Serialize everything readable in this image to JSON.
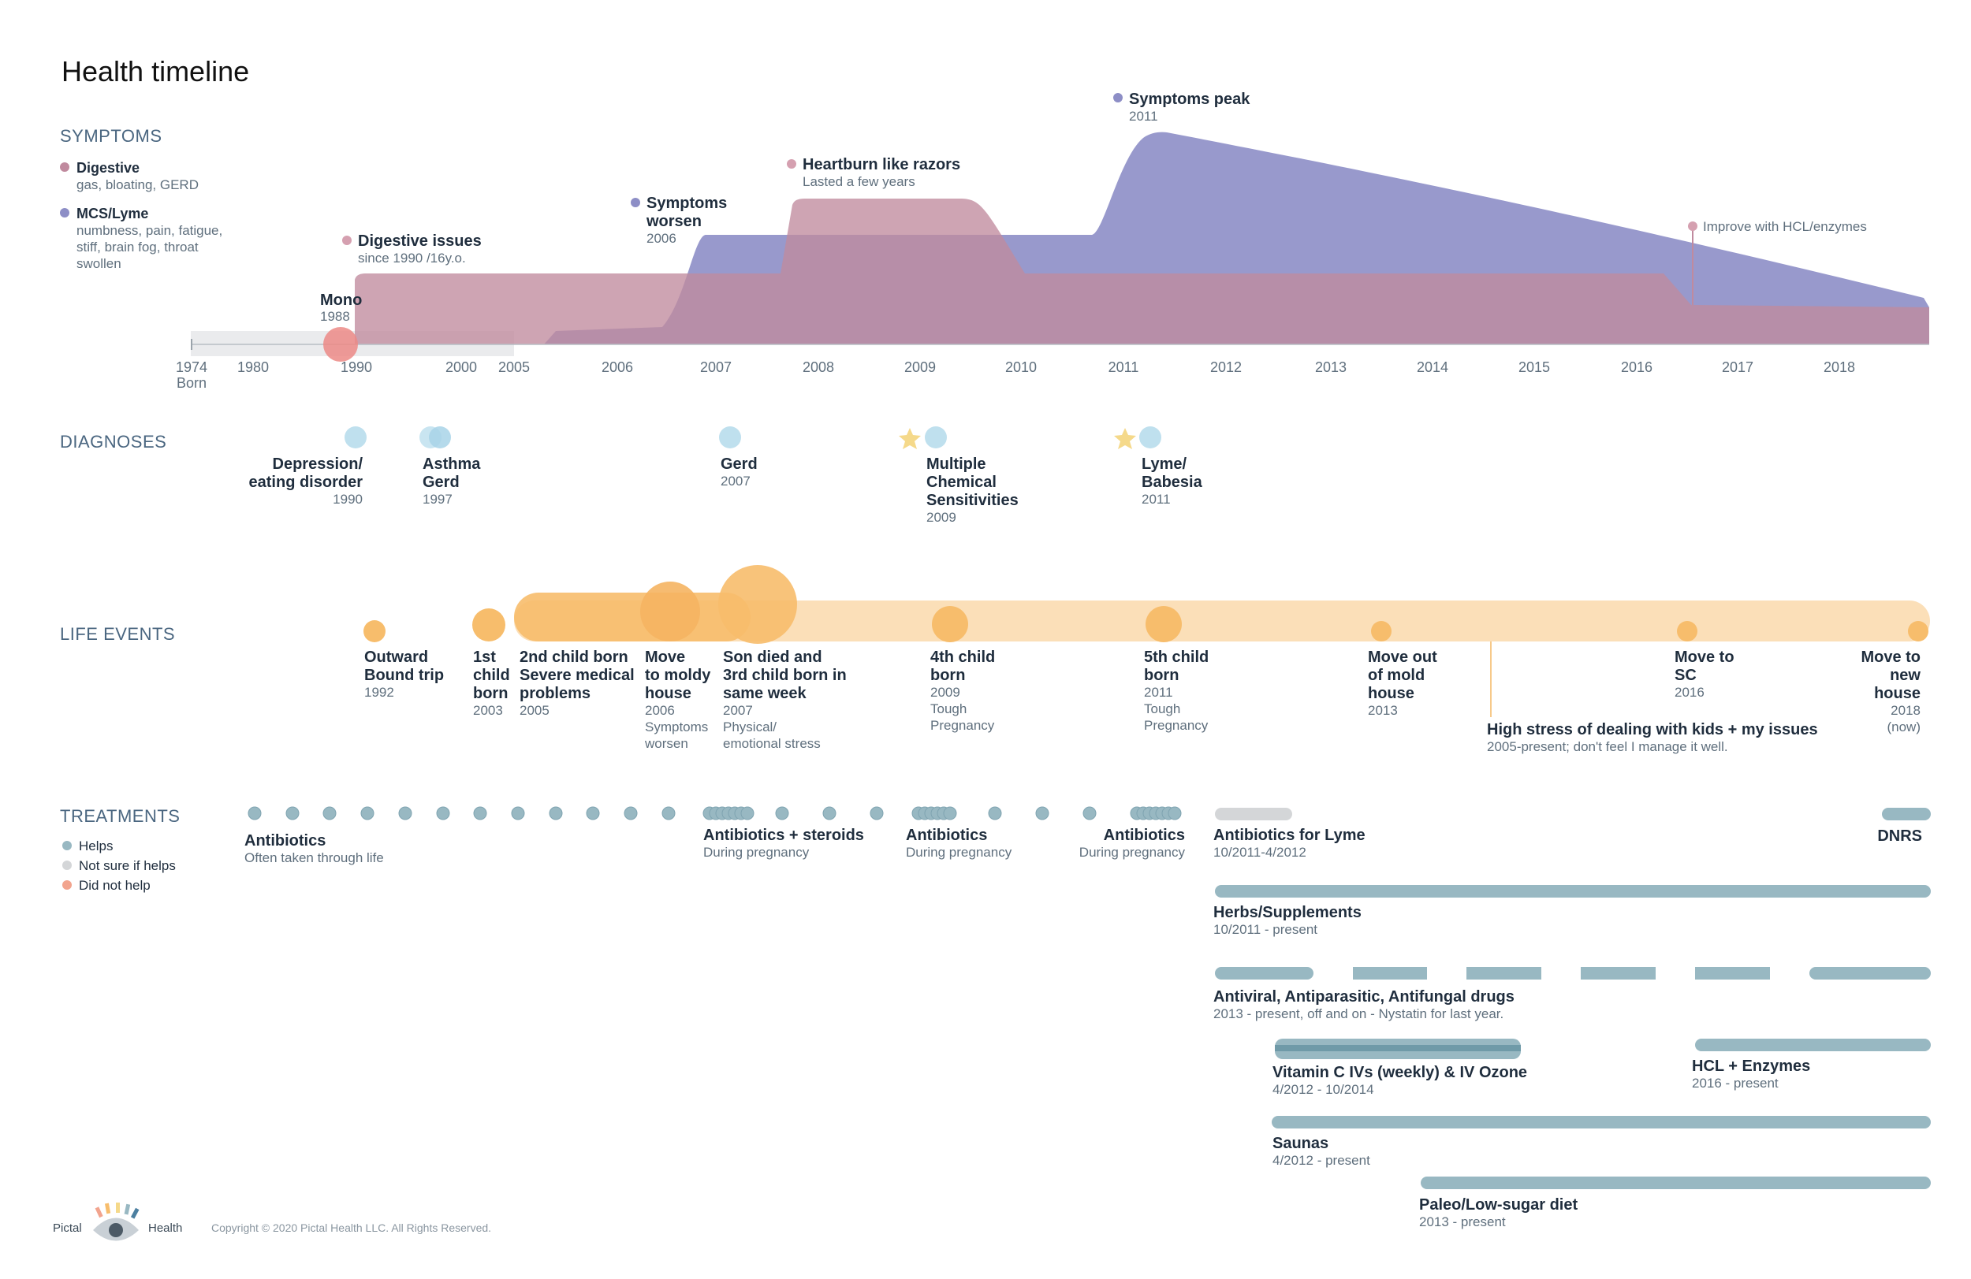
{
  "title": "Health timeline",
  "colors": {
    "digestive": "#c08a9e",
    "mcs": "#8d8ec6",
    "overlap": "#9a7198",
    "life": "#f7bd6c",
    "life_light": "#fbdfb8",
    "diag": "#bfe0ee",
    "star": "#f5d98a",
    "helps": "#98b8c2",
    "helps_dark": "#6f9aa8",
    "not_sure": "#d4d6d8",
    "did_not_help": "#f2a48e",
    "mono": "#ec8a86",
    "text_dark": "#1f2d3d",
    "text_sub": "#5f6f7d"
  },
  "sections": {
    "symptoms": "SYMPTOMS",
    "diagnoses": "DIAGNOSES",
    "life_events": "LIFE EVENTS",
    "treatments": "TREATMENTS"
  },
  "symptom_legend": [
    {
      "name": "Digestive",
      "desc": [
        "gas, bloating, GERD"
      ],
      "color": "#c08a9e"
    },
    {
      "name": "MCS/Lyme",
      "desc": [
        "numbness, pain, fatigue,",
        "stiff, brain fog, throat",
        "swollen"
      ],
      "color": "#8d8ec6"
    }
  ],
  "axis_ticks": [
    "1974",
    "1980",
    "1990",
    "2000",
    "2005",
    "2006",
    "2007",
    "2008",
    "2009",
    "2010",
    "2011",
    "2012",
    "2013",
    "2014",
    "2015",
    "2016",
    "2017",
    "2018"
  ],
  "axis_born": "Born",
  "symptom_annotations": [
    {
      "key": "mono",
      "title": "Mono",
      "sub": "1988"
    },
    {
      "key": "digestive_issues",
      "title": "Digestive issues",
      "sub": "since 1990 /16y.o."
    },
    {
      "key": "symptoms_worsen",
      "title": [
        "Symptoms",
        "worsen"
      ],
      "sub": "2006"
    },
    {
      "key": "heartburn",
      "title": "Heartburn like razors",
      "sub": "Lasted a few years"
    },
    {
      "key": "symptoms_peak",
      "title": "Symptoms peak",
      "sub": "2011"
    },
    {
      "key": "improve",
      "title": "Improve with HCL/enzymes",
      "sub": ""
    }
  ],
  "diagnoses": [
    {
      "title": [
        "Depression/",
        "eating disorder"
      ],
      "year": "1990",
      "align": "end",
      "star": false
    },
    {
      "title": [
        "Asthma",
        "Gerd"
      ],
      "year": "1997",
      "align": "start",
      "star": false
    },
    {
      "title": [
        "Gerd"
      ],
      "year": "2007",
      "align": "start",
      "star": false
    },
    {
      "title": [
        "Multiple",
        "Chemical",
        "Sensitivities"
      ],
      "year": "2009",
      "align": "start",
      "star": true
    },
    {
      "title": [
        "Lyme/",
        "Babesia"
      ],
      "year": "2011",
      "align": "start",
      "star": true
    }
  ],
  "life_events": [
    {
      "title": [
        "Outward",
        "Bound trip"
      ],
      "sub": [
        "1992"
      ]
    },
    {
      "title": [
        "1st",
        "child",
        "born"
      ],
      "sub": [
        "2003"
      ]
    },
    {
      "title": [
        "2nd child born",
        "Severe medical",
        "problems"
      ],
      "sub": [
        "2005"
      ]
    },
    {
      "title": [
        "Move",
        "to moldy",
        "house"
      ],
      "sub": [
        "2006",
        "Symptoms",
        "worsen"
      ]
    },
    {
      "title": [
        "Son died and",
        "3rd child born in",
        "same week"
      ],
      "sub": [
        "2007",
        "Physical/",
        "emotional stress"
      ]
    },
    {
      "title": [
        "4th child",
        "born"
      ],
      "sub": [
        "2009",
        "Tough",
        "Pregnancy"
      ]
    },
    {
      "title": [
        "5th child",
        "born"
      ],
      "sub": [
        "2011",
        "Tough",
        "Pregnancy"
      ]
    },
    {
      "title": [
        "Move out",
        "of mold",
        "house"
      ],
      "sub": [
        "2013"
      ]
    },
    {
      "title": [
        "Move to",
        "SC"
      ],
      "sub": [
        "2016"
      ]
    },
    {
      "title": [
        "Move to",
        "new",
        "house"
      ],
      "sub": [
        "2018",
        "(now)"
      ]
    },
    {
      "title": [
        "High stress of dealing with kids + my issues"
      ],
      "sub": [
        "2005-present; don't feel I manage it well."
      ]
    }
  ],
  "treatment_legend": [
    {
      "label": "Helps",
      "color": "#98b8c2"
    },
    {
      "label": "Not sure if helps",
      "color": "#d4d6d8"
    },
    {
      "label": "Did not help",
      "color": "#f2a48e"
    }
  ],
  "treatments": [
    {
      "title": "Antibiotics",
      "sub": "Often taken through life"
    },
    {
      "title": "Antibiotics + steroids",
      "sub": "During pregnancy"
    },
    {
      "title": "Antibiotics",
      "sub": "During pregnancy"
    },
    {
      "title": "Antibiotics",
      "sub": "During pregnancy"
    },
    {
      "title": "Antibiotics for Lyme",
      "sub": "10/2011-4/2012"
    },
    {
      "title": "DNRS",
      "sub": ""
    },
    {
      "title": "Herbs/Supplements",
      "sub": "10/2011 - present"
    },
    {
      "title": "Antiviral, Antiparasitic, Antifungal drugs",
      "sub": "2013 - present, off and on - Nystatin for last year."
    },
    {
      "title": "Vitamin C IVs (weekly) & IV Ozone",
      "sub": "4/2012 - 10/2014"
    },
    {
      "title": "HCL + Enzymes",
      "sub": "2016 - present"
    },
    {
      "title": "Saunas",
      "sub": "4/2012 - present"
    },
    {
      "title": "Paleo/Low-sugar diet",
      "sub": "2013 - present"
    }
  ],
  "footer": {
    "brand_left": "Pictal",
    "brand_right": "Health",
    "copyright": "Copyright © 2020 Pictal Health LLC. All Rights Reserved."
  }
}
